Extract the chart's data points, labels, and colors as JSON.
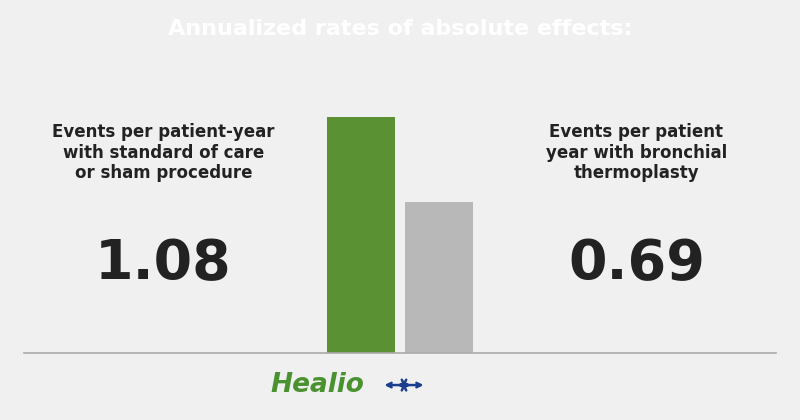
{
  "title": "Annualized rates of absolute effects:",
  "title_bg_color": "#5a9132",
  "title_text_color": "#ffffff",
  "bg_color": "#f0f0f0",
  "bar1_value": 1.08,
  "bar2_value": 0.69,
  "bar1_color": "#5a9132",
  "bar2_color": "#b8b8b8",
  "bar1_label": "Events per patient-year\nwith standard of care\nor sham procedure",
  "bar2_label": "Events per patient\nyear with bronchial\nthermoplasty",
  "bar1_number": "1.08",
  "bar2_number": "0.69",
  "number_color": "#222222",
  "label_color": "#222222",
  "healio_text_color": "#4a9130",
  "healio_star_color": "#1a3f8f",
  "ylim_max": 1.35
}
